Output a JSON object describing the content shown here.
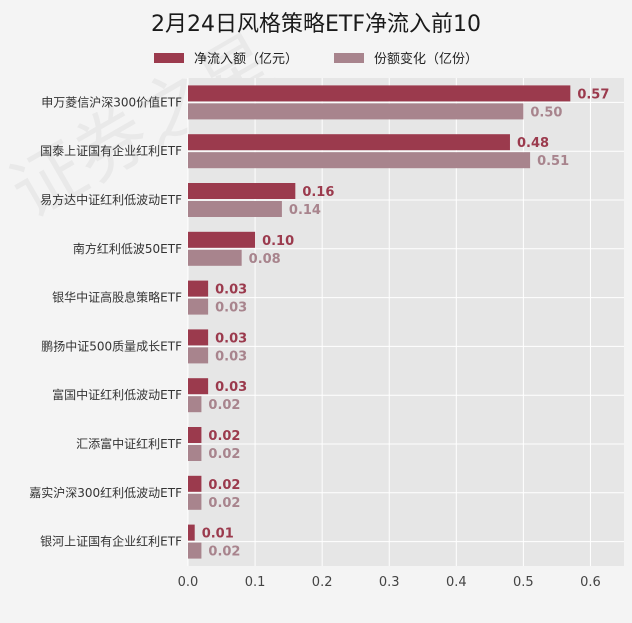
{
  "chart_data": {
    "type": "bar",
    "orientation": "horizontal",
    "title": "2月24日风格策略ETF净流入前10",
    "categories": [
      "申万菱信沪深300价值ETF",
      "国泰上证国有企业红利ETF",
      "易方达中证红利低波动ETF",
      "南方红利低波50ETF",
      "银华中证高股息策略ETF",
      "鹏扬中证500质量成长ETF",
      "富国中证红利低波动ETF",
      "汇添富中证红利ETF",
      "嘉实沪深300红利低波动ETF",
      "银河上证国有企业红利ETF"
    ],
    "series": [
      {
        "name": "净流入额（亿元）",
        "color": "#9b3a4d",
        "values": [
          0.57,
          0.48,
          0.16,
          0.1,
          0.03,
          0.03,
          0.03,
          0.02,
          0.02,
          0.01
        ],
        "labels": [
          "0.57",
          "0.48",
          "0.16",
          "0.10",
          "0.03",
          "0.03",
          "0.03",
          "0.02",
          "0.02",
          "0.01"
        ]
      },
      {
        "name": "份额变化（亿份）",
        "color": "#a8848d",
        "values": [
          0.5,
          0.51,
          0.14,
          0.08,
          0.03,
          0.03,
          0.02,
          0.02,
          0.02,
          0.02
        ],
        "labels": [
          "0.50",
          "0.51",
          "0.14",
          "0.08",
          "0.03",
          "0.03",
          "0.02",
          "0.02",
          "0.02",
          "0.02"
        ]
      }
    ],
    "xlim": [
      0,
      0.65
    ],
    "xticks": [
      "0.0",
      "0.1",
      "0.2",
      "0.3",
      "0.4",
      "0.5",
      "0.6"
    ],
    "xtick_values": [
      0,
      0.1,
      0.2,
      0.3,
      0.4,
      0.5,
      0.6
    ],
    "grid": true,
    "legend_position": "top-center",
    "plot_background": "#e6e6e6",
    "watermark": "证券之星"
  }
}
